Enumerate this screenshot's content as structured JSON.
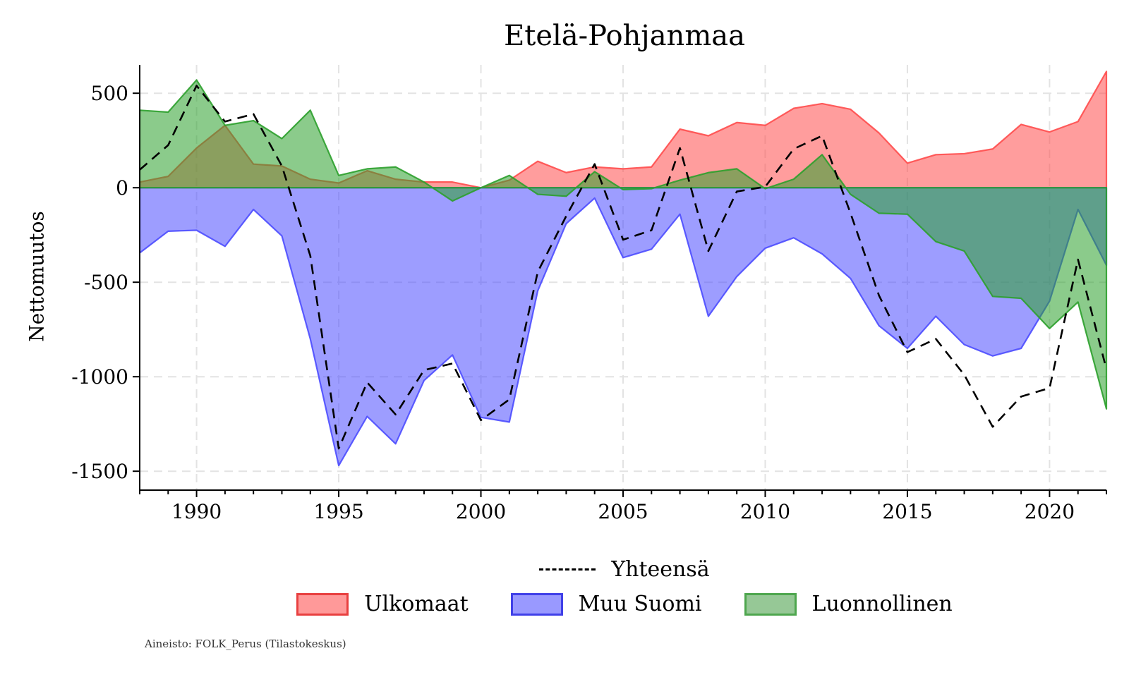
{
  "chart_data": {
    "type": "area",
    "title": "Etelä-Pohjanmaa",
    "xlabel": "",
    "ylabel": "Nettomuutos",
    "source": "Aineisto: FOLK_Perus (Tilastokeskus)",
    "xlim": [
      1988,
      2022
    ],
    "ylim": [
      -1600,
      650
    ],
    "xticks": [
      1990,
      1995,
      2000,
      2005,
      2010,
      2015,
      2020
    ],
    "yticks": [
      500,
      0,
      -500,
      -1000,
      -1500
    ],
    "grid": true,
    "legend_position": "bottom",
    "x": [
      1988,
      1989,
      1990,
      1991,
      1992,
      1993,
      1994,
      1995,
      1996,
      1997,
      1998,
      1999,
      2000,
      2001,
      2002,
      2003,
      2004,
      2005,
      2006,
      2007,
      2008,
      2009,
      2010,
      2011,
      2012,
      2013,
      2014,
      2015,
      2016,
      2017,
      2018,
      2019,
      2020,
      2021,
      2022
    ],
    "series": [
      {
        "name": "Ulkomaat",
        "kind": "area",
        "color": "#ff4d4d",
        "values": [
          30,
          60,
          210,
          330,
          125,
          115,
          45,
          25,
          90,
          45,
          30,
          30,
          0,
          40,
          140,
          80,
          110,
          100,
          110,
          310,
          275,
          345,
          330,
          420,
          445,
          415,
          290,
          130,
          175,
          180,
          205,
          335,
          295,
          350,
          615
        ]
      },
      {
        "name": "Muu Suomi",
        "kind": "area",
        "color": "#4d4dff",
        "values": [
          -345,
          -230,
          -225,
          -310,
          -115,
          -255,
          -800,
          -1470,
          -1210,
          -1355,
          -1020,
          -885,
          -1215,
          -1240,
          -545,
          -190,
          -55,
          -370,
          -325,
          -140,
          -680,
          -470,
          -320,
          -265,
          -350,
          -480,
          -730,
          -850,
          -680,
          -830,
          -890,
          -850,
          -600,
          -115,
          -410
        ]
      },
      {
        "name": "Luonnollinen",
        "kind": "area",
        "color": "#2ca02c",
        "values": [
          410,
          400,
          570,
          330,
          355,
          260,
          410,
          65,
          100,
          110,
          30,
          -70,
          0,
          65,
          -35,
          -45,
          85,
          -10,
          -5,
          40,
          80,
          100,
          -5,
          45,
          175,
          -35,
          -135,
          -140,
          -285,
          -335,
          -575,
          -585,
          -745,
          -605,
          -1170
        ]
      },
      {
        "name": "Yhteensä",
        "kind": "line",
        "style": "dashed",
        "color": "#000000",
        "values": [
          95,
          225,
          540,
          350,
          390,
          115,
          -360,
          -1380,
          -1030,
          -1200,
          -965,
          -930,
          -1230,
          -1120,
          -445,
          -150,
          125,
          -275,
          -225,
          210,
          -335,
          -20,
          5,
          205,
          275,
          -135,
          -570,
          -870,
          -800,
          -990,
          -1265,
          -1105,
          -1060,
          -380,
          -960
        ]
      }
    ]
  },
  "legend": {
    "total_label": "Yhteensä",
    "items": [
      {
        "label": "Ulkomaat",
        "fill": "#ff9999",
        "border": "#e84040"
      },
      {
        "label": "Muu Suomi",
        "fill": "#9999ff",
        "border": "#4040e8"
      },
      {
        "label": "Luonnollinen",
        "fill": "#96c896",
        "border": "#4ea64e"
      }
    ]
  }
}
